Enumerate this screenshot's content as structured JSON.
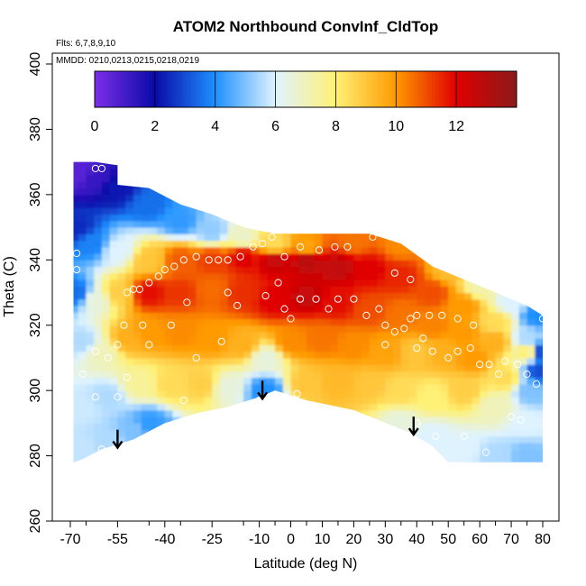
{
  "chart_data": {
    "type": "heatmap",
    "title": "ATOM2 Northbound ConvInf_CldTop",
    "annotations": [
      "Flts: 6,7,8,9,10",
      "MMDD: 0210,0213,0215,0218,0219"
    ],
    "xlabel": "Latitude (deg N)",
    "ylabel": "Theta (C)",
    "xlim": [
      -72,
      85
    ],
    "ylim": [
      260,
      400
    ],
    "xticks": [
      -70,
      -55,
      -40,
      -25,
      -10,
      0,
      10,
      20,
      30,
      40,
      50,
      60,
      70,
      80
    ],
    "xtick_labels": [
      "-70",
      "-55",
      "-40",
      "-25",
      "-10",
      "0",
      "10",
      "20",
      "30",
      "40",
      "50",
      "60",
      "70",
      "80"
    ],
    "yticks": [
      260,
      280,
      300,
      320,
      340,
      360,
      380,
      400
    ],
    "ytick_labels": [
      "260",
      "280",
      "300",
      "320",
      "340",
      "360",
      "380",
      "400"
    ],
    "colorbar": {
      "min": 0,
      "max": 14,
      "ticks": [
        0,
        2,
        4,
        6,
        8,
        10,
        12
      ],
      "tick_labels": [
        "0",
        "2",
        "4",
        "6",
        "8",
        "10",
        "12"
      ],
      "placement": "top-inside",
      "colors": [
        "#7b2fe8",
        "#0a0aa8",
        "#1e90ff",
        "#dff3ff",
        "#fff176",
        "#ff9a00",
        "#e00000",
        "#8b1a1a"
      ]
    },
    "grid": false,
    "cells": [
      {
        "lat": -67,
        "theta": 367,
        "value": 0.6
      },
      {
        "lat": -62,
        "theta": 365,
        "value": 1.2
      },
      {
        "lat": -55,
        "theta": 362,
        "value": 2.2
      },
      {
        "lat": -45,
        "theta": 357,
        "value": 3.5
      },
      {
        "lat": -35,
        "theta": 352,
        "value": 4.2
      },
      {
        "lat": -25,
        "theta": 349,
        "value": 5.2
      },
      {
        "lat": -15,
        "theta": 347,
        "value": 6.8
      },
      {
        "lat": -5,
        "theta": 345,
        "value": 8.5
      },
      {
        "lat": 5,
        "theta": 344,
        "value": 9.8
      },
      {
        "lat": 20,
        "theta": 346,
        "value": 10.5
      },
      {
        "lat": 35,
        "theta": 345,
        "value": 10.2
      },
      {
        "lat": 50,
        "theta": 337,
        "value": 9.2
      },
      {
        "lat": 60,
        "theta": 332,
        "value": 7.2
      },
      {
        "lat": 70,
        "theta": 327,
        "value": 6.0
      },
      {
        "lat": 78,
        "theta": 323,
        "value": 4.0
      },
      {
        "lat": -68,
        "theta": 350,
        "value": 2.5
      },
      {
        "lat": -63,
        "theta": 345,
        "value": 3.8
      },
      {
        "lat": -55,
        "theta": 343,
        "value": 6.0
      },
      {
        "lat": -45,
        "theta": 340,
        "value": 9.0
      },
      {
        "lat": -35,
        "theta": 340,
        "value": 10.8
      },
      {
        "lat": -25,
        "theta": 340,
        "value": 11.2
      },
      {
        "lat": -15,
        "theta": 341,
        "value": 12.0
      },
      {
        "lat": -5,
        "theta": 340,
        "value": 12.6
      },
      {
        "lat": 5,
        "theta": 340,
        "value": 12.9
      },
      {
        "lat": 15,
        "theta": 338,
        "value": 12.7
      },
      {
        "lat": 25,
        "theta": 337,
        "value": 12.0
      },
      {
        "lat": 35,
        "theta": 335,
        "value": 11.5
      },
      {
        "lat": 45,
        "theta": 330,
        "value": 11.0
      },
      {
        "lat": 55,
        "theta": 326,
        "value": 10.0
      },
      {
        "lat": 65,
        "theta": 321,
        "value": 8.5
      },
      {
        "lat": 75,
        "theta": 316,
        "value": 5.5
      },
      {
        "lat": 79,
        "theta": 312,
        "value": 3.0
      },
      {
        "lat": -68,
        "theta": 330,
        "value": 3.5
      },
      {
        "lat": -62,
        "theta": 328,
        "value": 6.5
      },
      {
        "lat": -55,
        "theta": 330,
        "value": 8.8
      },
      {
        "lat": -45,
        "theta": 330,
        "value": 11.8
      },
      {
        "lat": -35,
        "theta": 330,
        "value": 11.3
      },
      {
        "lat": -25,
        "theta": 331,
        "value": 10.6
      },
      {
        "lat": -15,
        "theta": 330,
        "value": 11.4
      },
      {
        "lat": -5,
        "theta": 328,
        "value": 12.0
      },
      {
        "lat": 5,
        "theta": 329,
        "value": 12.6
      },
      {
        "lat": 15,
        "theta": 327,
        "value": 11.8
      },
      {
        "lat": 25,
        "theta": 325,
        "value": 11.0
      },
      {
        "lat": 35,
        "theta": 323,
        "value": 10.5
      },
      {
        "lat": 45,
        "theta": 320,
        "value": 10.3
      },
      {
        "lat": 55,
        "theta": 318,
        "value": 10.0
      },
      {
        "lat": 65,
        "theta": 315,
        "value": 9.5
      },
      {
        "lat": 75,
        "theta": 312,
        "value": 8.0
      },
      {
        "lat": 79,
        "theta": 306,
        "value": 3.0
      },
      {
        "lat": -66,
        "theta": 315,
        "value": 5.5
      },
      {
        "lat": -60,
        "theta": 312,
        "value": 7.0
      },
      {
        "lat": -52,
        "theta": 316,
        "value": 9.5
      },
      {
        "lat": -45,
        "theta": 318,
        "value": 10.0
      },
      {
        "lat": -35,
        "theta": 318,
        "value": 10.2
      },
      {
        "lat": -25,
        "theta": 316,
        "value": 10.0
      },
      {
        "lat": -15,
        "theta": 314,
        "value": 9.5
      },
      {
        "lat": -8,
        "theta": 310,
        "value": 6.5
      },
      {
        "lat": 0,
        "theta": 315,
        "value": 10.2
      },
      {
        "lat": 10,
        "theta": 316,
        "value": 10.5
      },
      {
        "lat": 20,
        "theta": 314,
        "value": 10.2
      },
      {
        "lat": 30,
        "theta": 312,
        "value": 9.8
      },
      {
        "lat": 40,
        "theta": 312,
        "value": 9.0
      },
      {
        "lat": 48,
        "theta": 312,
        "value": 9.5
      },
      {
        "lat": 58,
        "theta": 310,
        "value": 10.0
      },
      {
        "lat": 68,
        "theta": 304,
        "value": 8.5
      },
      {
        "lat": 76,
        "theta": 300,
        "value": 5.0
      },
      {
        "lat": -66,
        "theta": 295,
        "value": 5.8
      },
      {
        "lat": -58,
        "theta": 298,
        "value": 5.5
      },
      {
        "lat": -48,
        "theta": 302,
        "value": 7.5
      },
      {
        "lat": -38,
        "theta": 302,
        "value": 8.5
      },
      {
        "lat": -28,
        "theta": 302,
        "value": 8.8
      },
      {
        "lat": -20,
        "theta": 301,
        "value": 6.5
      },
      {
        "lat": -8,
        "theta": 300,
        "value": 4.0
      },
      {
        "lat": 5,
        "theta": 302,
        "value": 9.0
      },
      {
        "lat": 15,
        "theta": 303,
        "value": 9.3
      },
      {
        "lat": 25,
        "theta": 302,
        "value": 9.0
      },
      {
        "lat": 35,
        "theta": 300,
        "value": 8.5
      },
      {
        "lat": 45,
        "theta": 298,
        "value": 8.0
      },
      {
        "lat": 55,
        "theta": 300,
        "value": 8.8
      },
      {
        "lat": 65,
        "theta": 295,
        "value": 7.0
      },
      {
        "lat": 75,
        "theta": 290,
        "value": 6.0
      },
      {
        "lat": -66,
        "theta": 282,
        "value": 5.7
      },
      {
        "lat": -58,
        "theta": 285,
        "value": 5.5
      },
      {
        "lat": -50,
        "theta": 288,
        "value": 5.0
      },
      {
        "lat": -45,
        "theta": 290,
        "value": 4.2
      },
      {
        "lat": 35,
        "theta": 290,
        "value": 6.5
      },
      {
        "lat": 45,
        "theta": 286,
        "value": 6.0
      },
      {
        "lat": 55,
        "theta": 282,
        "value": 6.0
      },
      {
        "lat": 65,
        "theta": 280,
        "value": 5.5
      },
      {
        "lat": 75,
        "theta": 280,
        "value": 5.0
      }
    ],
    "observations": [
      [
        -68,
        342
      ],
      [
        -68,
        337
      ],
      [
        -62,
        368
      ],
      [
        -60,
        368
      ],
      [
        -52,
        330
      ],
      [
        -50,
        331
      ],
      [
        -48,
        331
      ],
      [
        -45,
        333
      ],
      [
        -42,
        335
      ],
      [
        -40,
        337
      ],
      [
        -37,
        338
      ],
      [
        -34,
        340
      ],
      [
        -30,
        341
      ],
      [
        -26,
        340
      ],
      [
        -23,
        340
      ],
      [
        -20,
        340
      ],
      [
        -16,
        341
      ],
      [
        -12,
        344
      ],
      [
        -9,
        345
      ],
      [
        -6,
        347
      ],
      [
        -2,
        341
      ],
      [
        3,
        344
      ],
      [
        9,
        343
      ],
      [
        14,
        344
      ],
      [
        18,
        344
      ],
      [
        26,
        347
      ],
      [
        -53,
        320
      ],
      [
        -47,
        320
      ],
      [
        -38,
        320
      ],
      [
        -33,
        327
      ],
      [
        -20,
        330
      ],
      [
        -17,
        326
      ],
      [
        -8,
        329
      ],
      [
        -4,
        333
      ],
      [
        -2,
        325
      ],
      [
        0,
        322
      ],
      [
        3,
        328
      ],
      [
        8,
        328
      ],
      [
        12,
        325
      ],
      [
        15,
        328
      ],
      [
        20,
        328
      ],
      [
        24,
        323
      ],
      [
        28,
        325
      ],
      [
        30,
        320
      ],
      [
        33,
        318
      ],
      [
        36,
        319
      ],
      [
        38,
        322
      ],
      [
        40,
        323
      ],
      [
        44,
        323
      ],
      [
        48,
        323
      ],
      [
        53,
        322
      ],
      [
        58,
        320
      ],
      [
        33,
        336
      ],
      [
        38,
        334
      ],
      [
        -66,
        305
      ],
      [
        -62,
        312
      ],
      [
        -58,
        310
      ],
      [
        -55,
        314
      ],
      [
        -45,
        314
      ],
      [
        -22,
        315
      ],
      [
        -30,
        310
      ],
      [
        30,
        314
      ],
      [
        40,
        313
      ],
      [
        42,
        316
      ],
      [
        45,
        312
      ],
      [
        50,
        310
      ],
      [
        53,
        312
      ],
      [
        57,
        313
      ],
      [
        60,
        308
      ],
      [
        63,
        308
      ],
      [
        66,
        305
      ],
      [
        68,
        309
      ],
      [
        72,
        308
      ],
      [
        75,
        305
      ],
      [
        78,
        302
      ],
      [
        80,
        322
      ],
      [
        -52,
        304
      ],
      [
        -55,
        298
      ],
      [
        -62,
        298
      ],
      [
        -34,
        297
      ],
      [
        -10,
        297
      ],
      [
        2,
        299
      ],
      [
        40,
        290
      ],
      [
        46,
        286
      ],
      [
        55,
        286
      ],
      [
        62,
        281
      ],
      [
        70,
        292
      ],
      [
        73,
        291
      ],
      [
        -45,
        285
      ],
      [
        -60,
        282
      ]
    ],
    "arrows": [
      {
        "lat": -55,
        "theta": 288
      },
      {
        "lat": -9,
        "theta": 303
      },
      {
        "lat": 39,
        "theta": 292
      }
    ]
  }
}
